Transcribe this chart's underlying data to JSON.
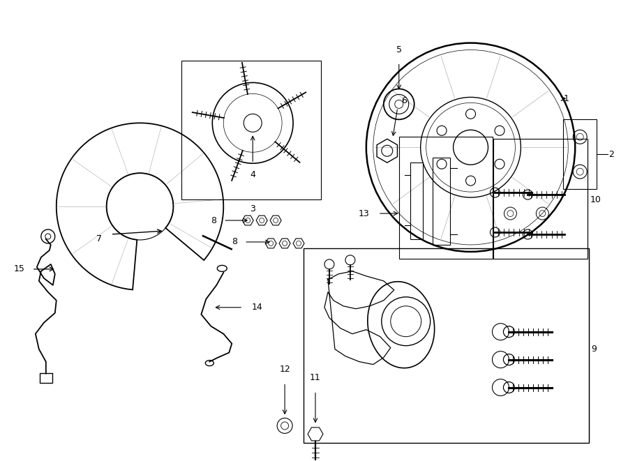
{
  "bg_color": "#ffffff",
  "line_color": "#000000",
  "fig_width": 9.0,
  "fig_height": 6.61,
  "dpi": 100
}
